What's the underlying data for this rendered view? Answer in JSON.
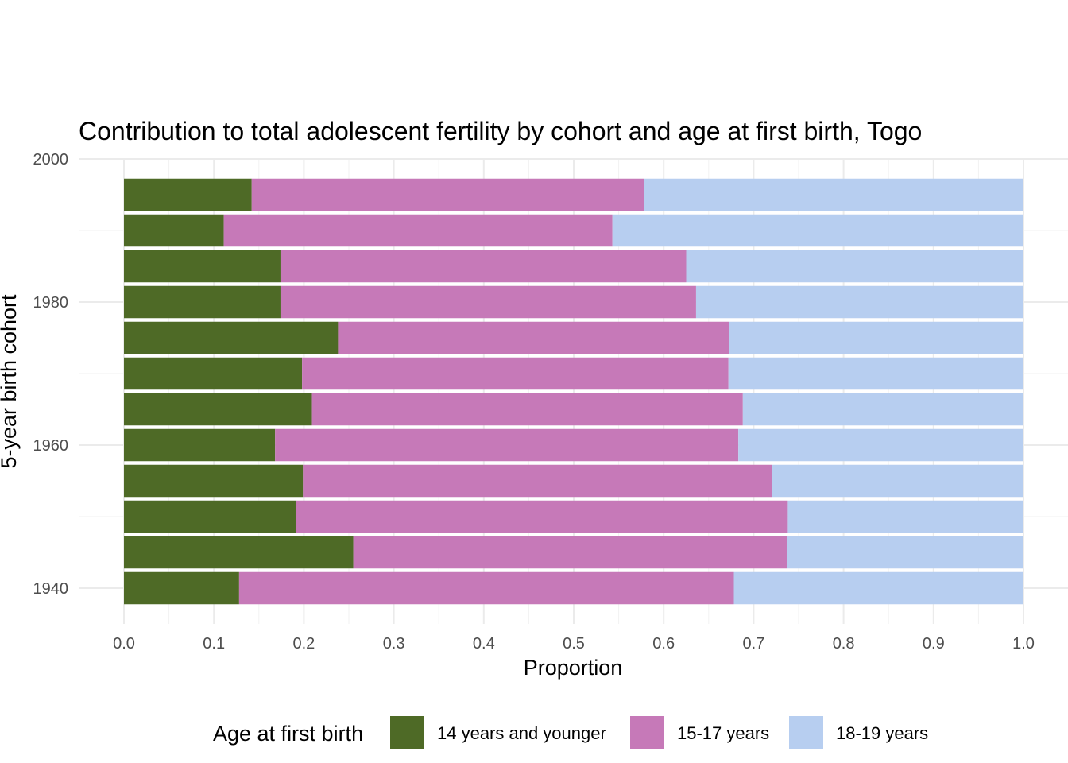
{
  "chart_data": {
    "type": "bar",
    "orientation": "horizontal",
    "stacked": true,
    "title": "Contribution to total adolescent fertility by cohort and age at first birth,  Togo",
    "xlabel": "Proportion",
    "ylabel": "5-year birth cohort",
    "xlim": [
      0,
      1
    ],
    "ylim": [
      1940,
      2000
    ],
    "x_ticks": [
      "0.0",
      "0.1",
      "0.2",
      "0.3",
      "0.4",
      "0.5",
      "0.6",
      "0.7",
      "0.8",
      "0.9",
      "1.0"
    ],
    "y_ticks": [
      "1940",
      "1960",
      "1980",
      "2000"
    ],
    "grid": true,
    "legend": {
      "title": "Age at first birth",
      "position": "bottom"
    },
    "categories": [
      1940,
      1945,
      1950,
      1955,
      1960,
      1965,
      1970,
      1975,
      1980,
      1985,
      1990,
      1995
    ],
    "series": [
      {
        "name": "14 years and younger",
        "color": "#4e6a26",
        "values": [
          0.128,
          0.255,
          0.191,
          0.199,
          0.168,
          0.209,
          0.198,
          0.238,
          0.174,
          0.174,
          0.111,
          0.142
        ]
      },
      {
        "name": "15-17 years",
        "color": "#c679b8",
        "values": [
          0.55,
          0.482,
          0.547,
          0.521,
          0.515,
          0.479,
          0.474,
          0.435,
          0.462,
          0.451,
          0.432,
          0.436
        ]
      },
      {
        "name": "18-19 years",
        "color": "#b7cef0",
        "values": [
          0.322,
          0.263,
          0.262,
          0.28,
          0.317,
          0.312,
          0.328,
          0.327,
          0.364,
          0.375,
          0.457,
          0.422
        ]
      }
    ]
  }
}
